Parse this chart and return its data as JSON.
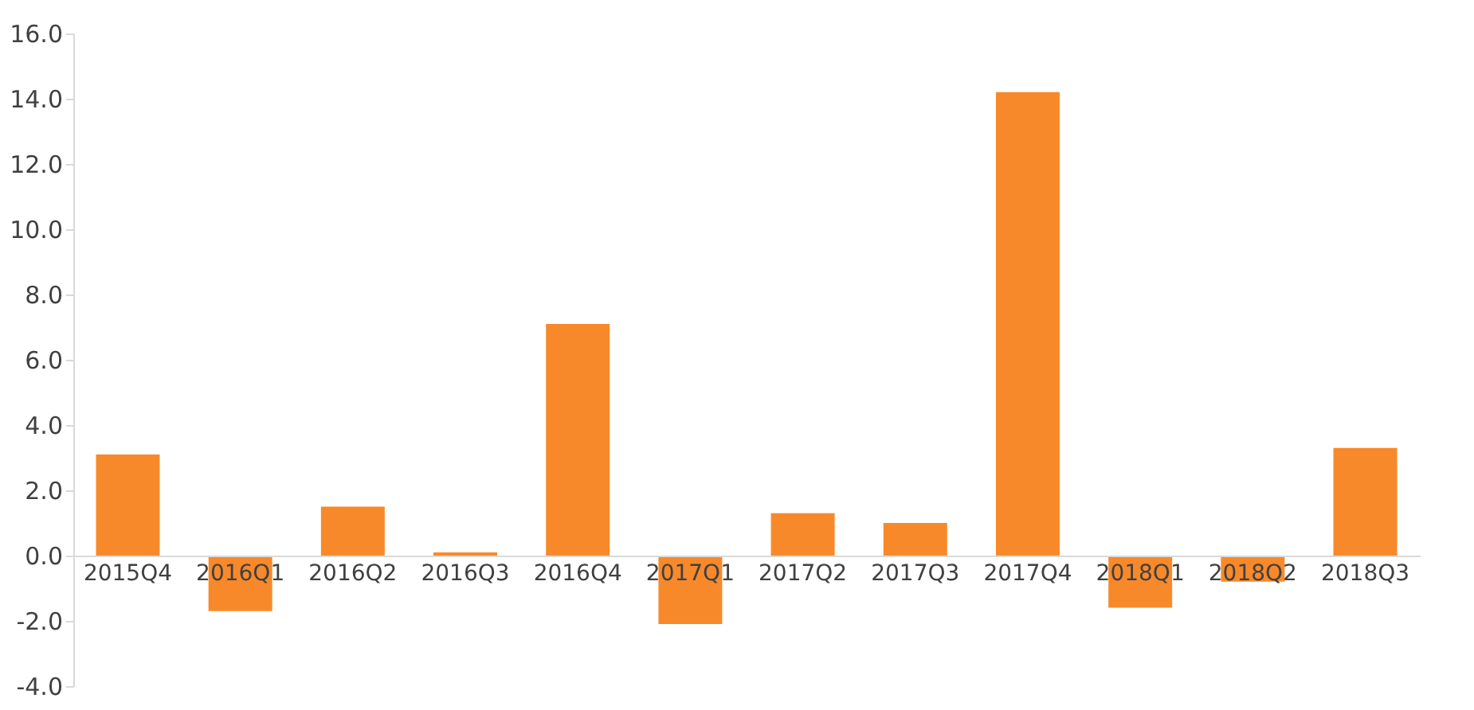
{
  "chart_data": {
    "type": "bar",
    "categories": [
      "2015Q4",
      "2016Q1",
      "2016Q2",
      "2016Q3",
      "2016Q4",
      "2017Q1",
      "2017Q2",
      "2017Q3",
      "2017Q4",
      "2018Q1",
      "2018Q2",
      "2018Q3"
    ],
    "values": [
      3.1,
      -1.7,
      1.5,
      0.1,
      7.1,
      -2.1,
      1.3,
      1.0,
      14.2,
      -1.6,
      -0.8,
      3.3
    ],
    "color": "#f8892a",
    "ylim": [
      -4,
      16
    ],
    "yticks": [
      {
        "value": -4,
        "label": "-4.0"
      },
      {
        "value": -2,
        "label": "-2.0"
      },
      {
        "value": 0,
        "label": "0.0"
      },
      {
        "value": 2,
        "label": "2.0"
      },
      {
        "value": 4,
        "label": "4.0"
      },
      {
        "value": 6,
        "label": "6.0"
      },
      {
        "value": 8,
        "label": "8.0"
      },
      {
        "value": 10,
        "label": "10.0"
      },
      {
        "value": 12,
        "label": "12.0"
      },
      {
        "value": 14,
        "label": "14.0"
      },
      {
        "value": 16,
        "label": "16.0"
      }
    ],
    "grid": false
  }
}
